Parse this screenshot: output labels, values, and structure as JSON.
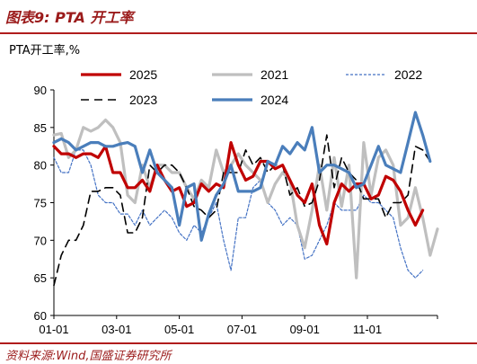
{
  "header": {
    "title": "图表9:  PTA 开工率"
  },
  "footer": {
    "source": "资料来源:Wind,国盛证券研究所"
  },
  "chart_data": {
    "type": "line",
    "ylabel": "PTA开工率,%",
    "ylim": [
      60,
      90
    ],
    "yticks": [
      60,
      65,
      70,
      75,
      80,
      85,
      90
    ],
    "xticks": [
      "01-01",
      "03-01",
      "05-01",
      "07-01",
      "09-01",
      "11-01"
    ],
    "xtick_weeks": [
      0,
      8.5,
      17,
      25.5,
      34,
      42.5
    ],
    "x_weeks_total": 52,
    "legend": {
      "position": "top",
      "columns": 3
    },
    "series": [
      {
        "name": "2025",
        "color": "#c00000",
        "dash": "solid",
        "values": [
          82.5,
          81.5,
          81.5,
          81,
          81.5,
          81.5,
          81,
          82.5,
          79,
          79,
          77,
          77,
          78,
          76.5,
          80,
          78,
          76.5,
          77,
          74.5,
          75,
          77.5,
          76.5,
          77.5,
          77,
          83,
          80,
          78,
          78.5,
          80.5,
          80.5,
          79.5,
          80,
          78,
          76,
          75,
          77.5,
          72,
          69.5,
          75,
          77.5,
          76.5,
          77.5,
          77.5,
          75.5,
          76,
          78.5,
          78,
          76.5,
          74,
          72,
          74
        ]
      },
      {
        "name": "2021",
        "color": "#bfbfbf",
        "dash": "solid",
        "values": [
          84,
          84.2,
          81,
          82,
          85,
          84.5,
          85,
          86,
          85,
          83,
          76,
          75,
          80,
          77,
          80,
          80,
          79,
          79,
          77,
          75.5,
          78,
          77,
          82,
          79,
          80,
          81.5,
          80,
          79,
          78,
          75,
          77.5,
          79,
          78,
          72,
          69,
          74,
          80,
          74,
          81,
          74.5,
          80,
          65,
          83,
          76,
          81,
          82,
          80,
          72,
          73,
          77,
          73,
          68,
          71.5
        ]
      },
      {
        "name": "2022",
        "color": "#4472c4",
        "dash": "dotted",
        "values": [
          81,
          79,
          79,
          82,
          82,
          80,
          76,
          75,
          75,
          73.5,
          73.5,
          72,
          74,
          72,
          73,
          74,
          73,
          71,
          70,
          72,
          71,
          73,
          75,
          70,
          66,
          73,
          73,
          77,
          78,
          75,
          74,
          72,
          73,
          72,
          67.5,
          68,
          70,
          72,
          75,
          74,
          74,
          74,
          76,
          75,
          75,
          74,
          73,
          69,
          66,
          65,
          66
        ]
      },
      {
        "name": "2023",
        "color": "#000000",
        "dash": "dashed",
        "values": [
          64,
          68,
          70,
          70,
          72,
          76.5,
          76.5,
          77,
          77,
          76,
          71,
          71,
          73,
          80,
          79,
          80,
          80,
          79,
          77,
          74.5,
          74,
          73,
          74,
          79,
          79,
          79,
          82,
          80,
          81,
          79,
          80,
          80,
          76,
          77,
          74.5,
          75,
          78,
          84,
          77,
          81,
          79,
          78,
          75.5,
          75.5,
          75.5,
          73,
          75,
          75,
          76,
          82.5,
          82,
          80.5
        ]
      },
      {
        "name": "2024",
        "color": "#4a7ebb",
        "dash": "solid",
        "values": [
          83,
          83.5,
          83,
          82,
          82.5,
          83,
          83,
          82.5,
          82.5,
          82.8,
          83,
          82.5,
          79,
          82,
          79,
          78,
          77,
          72,
          77,
          77.5,
          70,
          73.5,
          76,
          77.5,
          80,
          76.5,
          76.5,
          76.5,
          77,
          80.5,
          80,
          82.5,
          81.5,
          83,
          82,
          85,
          79,
          80,
          80,
          79.5,
          79,
          77,
          77.5,
          80,
          82.5,
          80,
          79.5,
          79,
          83,
          87,
          84,
          80.5
        ]
      }
    ]
  }
}
